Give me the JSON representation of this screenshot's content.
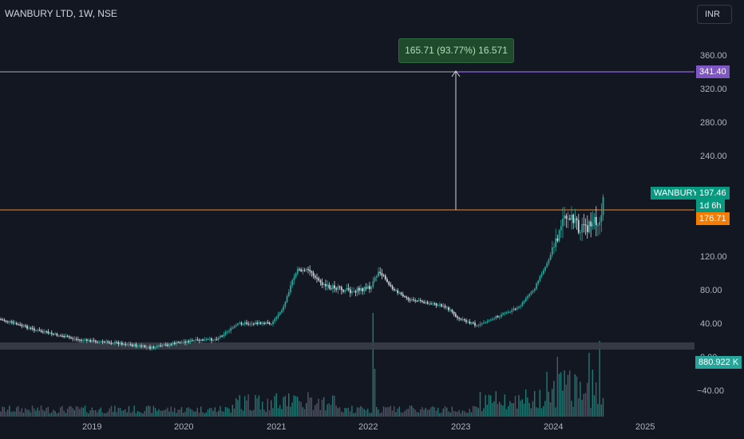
{
  "header": {
    "title": "WANBURY LTD, 1W, NSE"
  },
  "currency": {
    "label": "INR"
  },
  "measure": {
    "label": "165.71 (93.77%) 16.571"
  },
  "price_axis": {
    "ticks": [
      "360.00",
      "320.00",
      "280.00",
      "240.00",
      "120.00",
      "80.00",
      "40.00",
      "0.00",
      "−40.00"
    ]
  },
  "time_axis": {
    "ticks": [
      "2019",
      "2020",
      "2021",
      "2022",
      "2023",
      "2024",
      "2025"
    ]
  },
  "badges": {
    "target": "341.40",
    "symbol": "WANBURY",
    "last_price": "197.46",
    "countdown": "1d 6h",
    "level": "176.71",
    "volume": "880.922 K"
  },
  "colors": {
    "background": "#131722",
    "up": "#26a69a",
    "down": "#d1d4dc",
    "target_line": "#7e57c2",
    "level_line": "#ef8a2e"
  }
}
